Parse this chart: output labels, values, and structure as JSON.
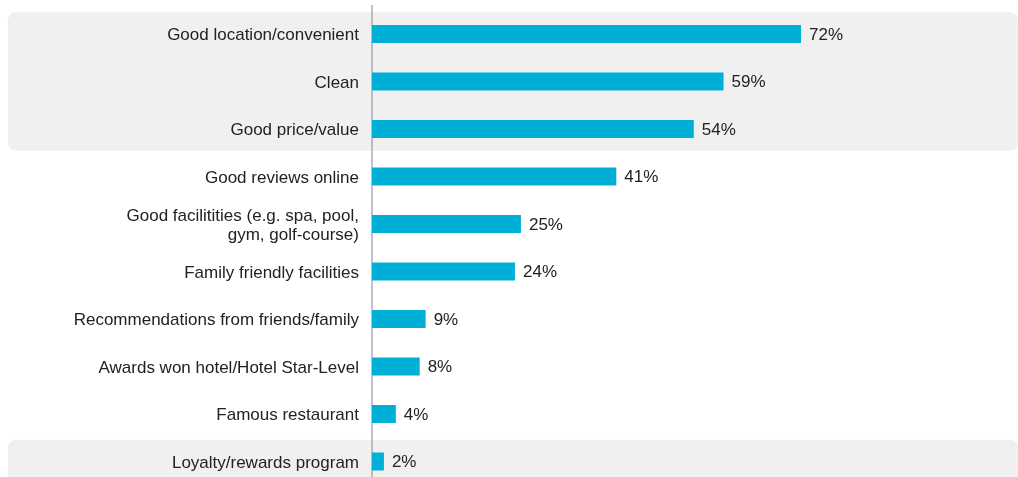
{
  "chart_data": {
    "type": "bar",
    "orientation": "horizontal",
    "categories": [
      "Good location/convenient",
      "Clean",
      "Good price/value",
      "Good reviews online",
      "Good facilitities (e.g. spa, pool, gym, golf-course)",
      "Family friendly facilities",
      "Recommendations from friends/family",
      "Awards won hotel/Hotel Star-Level",
      "Famous restaurant",
      "Loyalty/rewards program"
    ],
    "values": [
      72,
      59,
      54,
      41,
      25,
      24,
      9,
      8,
      4,
      2
    ],
    "value_labels": [
      "72%",
      "59%",
      "54%",
      "41%",
      "25%",
      "24%",
      "9%",
      "8%",
      "4%",
      "2%"
    ],
    "color": "#00afd6",
    "bands": [
      {
        "axis": "y",
        "from": "Good location/convenient",
        "to": "Good price/value",
        "color": "#f0f0f0"
      },
      {
        "axis": "y",
        "from": "Loyalty/rewards program",
        "to": "Loyalty/rewards program",
        "color": "#f0f0f0"
      }
    ]
  }
}
